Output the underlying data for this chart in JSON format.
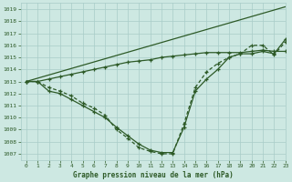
{
  "title": "Graphe pression niveau de la mer (hPa)",
  "bg_color": "#cde8e2",
  "grid_color": "#a8ccc8",
  "line_color": "#2d5a27",
  "xlim": [
    -0.5,
    23
  ],
  "ylim": [
    1006.5,
    1019.5
  ],
  "xticks": [
    0,
    1,
    2,
    3,
    4,
    5,
    6,
    7,
    8,
    9,
    10,
    11,
    12,
    13,
    14,
    15,
    16,
    17,
    18,
    19,
    20,
    21,
    22,
    23
  ],
  "yticks": [
    1007,
    1008,
    1009,
    1010,
    1011,
    1012,
    1013,
    1014,
    1015,
    1016,
    1017,
    1018,
    1019
  ],
  "series1": {
    "x": [
      0,
      1,
      2,
      3,
      4,
      5,
      6,
      7,
      8,
      9,
      10,
      11,
      12,
      13,
      14,
      15,
      16,
      17,
      18,
      19,
      20,
      21,
      22,
      23
    ],
    "y": [
      1013.0,
      1013.0,
      1013.2,
      1013.4,
      1013.6,
      1013.8,
      1014.0,
      1014.2,
      1014.4,
      1014.6,
      1014.7,
      1014.8,
      1015.0,
      1015.1,
      1015.2,
      1015.3,
      1015.4,
      1015.4,
      1015.4,
      1015.4,
      1015.5,
      1015.6,
      1015.5,
      1015.5
    ],
    "linestyle": "-",
    "has_markers": true
  },
  "series2": {
    "x": [
      0,
      1,
      2,
      3,
      4,
      5,
      6,
      7,
      8,
      9,
      10,
      11,
      12,
      13,
      14,
      15,
      16,
      17,
      18,
      19,
      20,
      21,
      22,
      23
    ],
    "y": [
      1013.0,
      1013.0,
      1012.2,
      1012.0,
      1011.5,
      1011.0,
      1010.5,
      1010.0,
      1009.2,
      1008.5,
      1007.8,
      1007.3,
      1007.1,
      1007.1,
      1009.2,
      1012.2,
      1013.2,
      1014.0,
      1015.0,
      1015.3,
      1015.3,
      1015.5,
      1015.3,
      1016.5
    ],
    "linestyle": "-",
    "has_markers": true
  },
  "series3": {
    "x": [
      0,
      1,
      2,
      3,
      4,
      5,
      6,
      7,
      8,
      9,
      10,
      11,
      12,
      13,
      14,
      15,
      16,
      17,
      18,
      19,
      20,
      21,
      22,
      23
    ],
    "y": [
      1013.0,
      1013.0,
      1012.5,
      1012.2,
      1011.8,
      1011.2,
      1010.8,
      1010.2,
      1009.0,
      1008.3,
      1007.5,
      1007.2,
      1007.0,
      1007.0,
      1009.5,
      1012.5,
      1013.8,
      1014.5,
      1015.0,
      1015.3,
      1016.0,
      1016.0,
      1015.2,
      1016.3
    ],
    "linestyle": "--",
    "has_markers": true
  },
  "series4": {
    "x": [
      0,
      23
    ],
    "y": [
      1013.0,
      1019.2
    ],
    "linestyle": "-",
    "has_markers": false
  }
}
